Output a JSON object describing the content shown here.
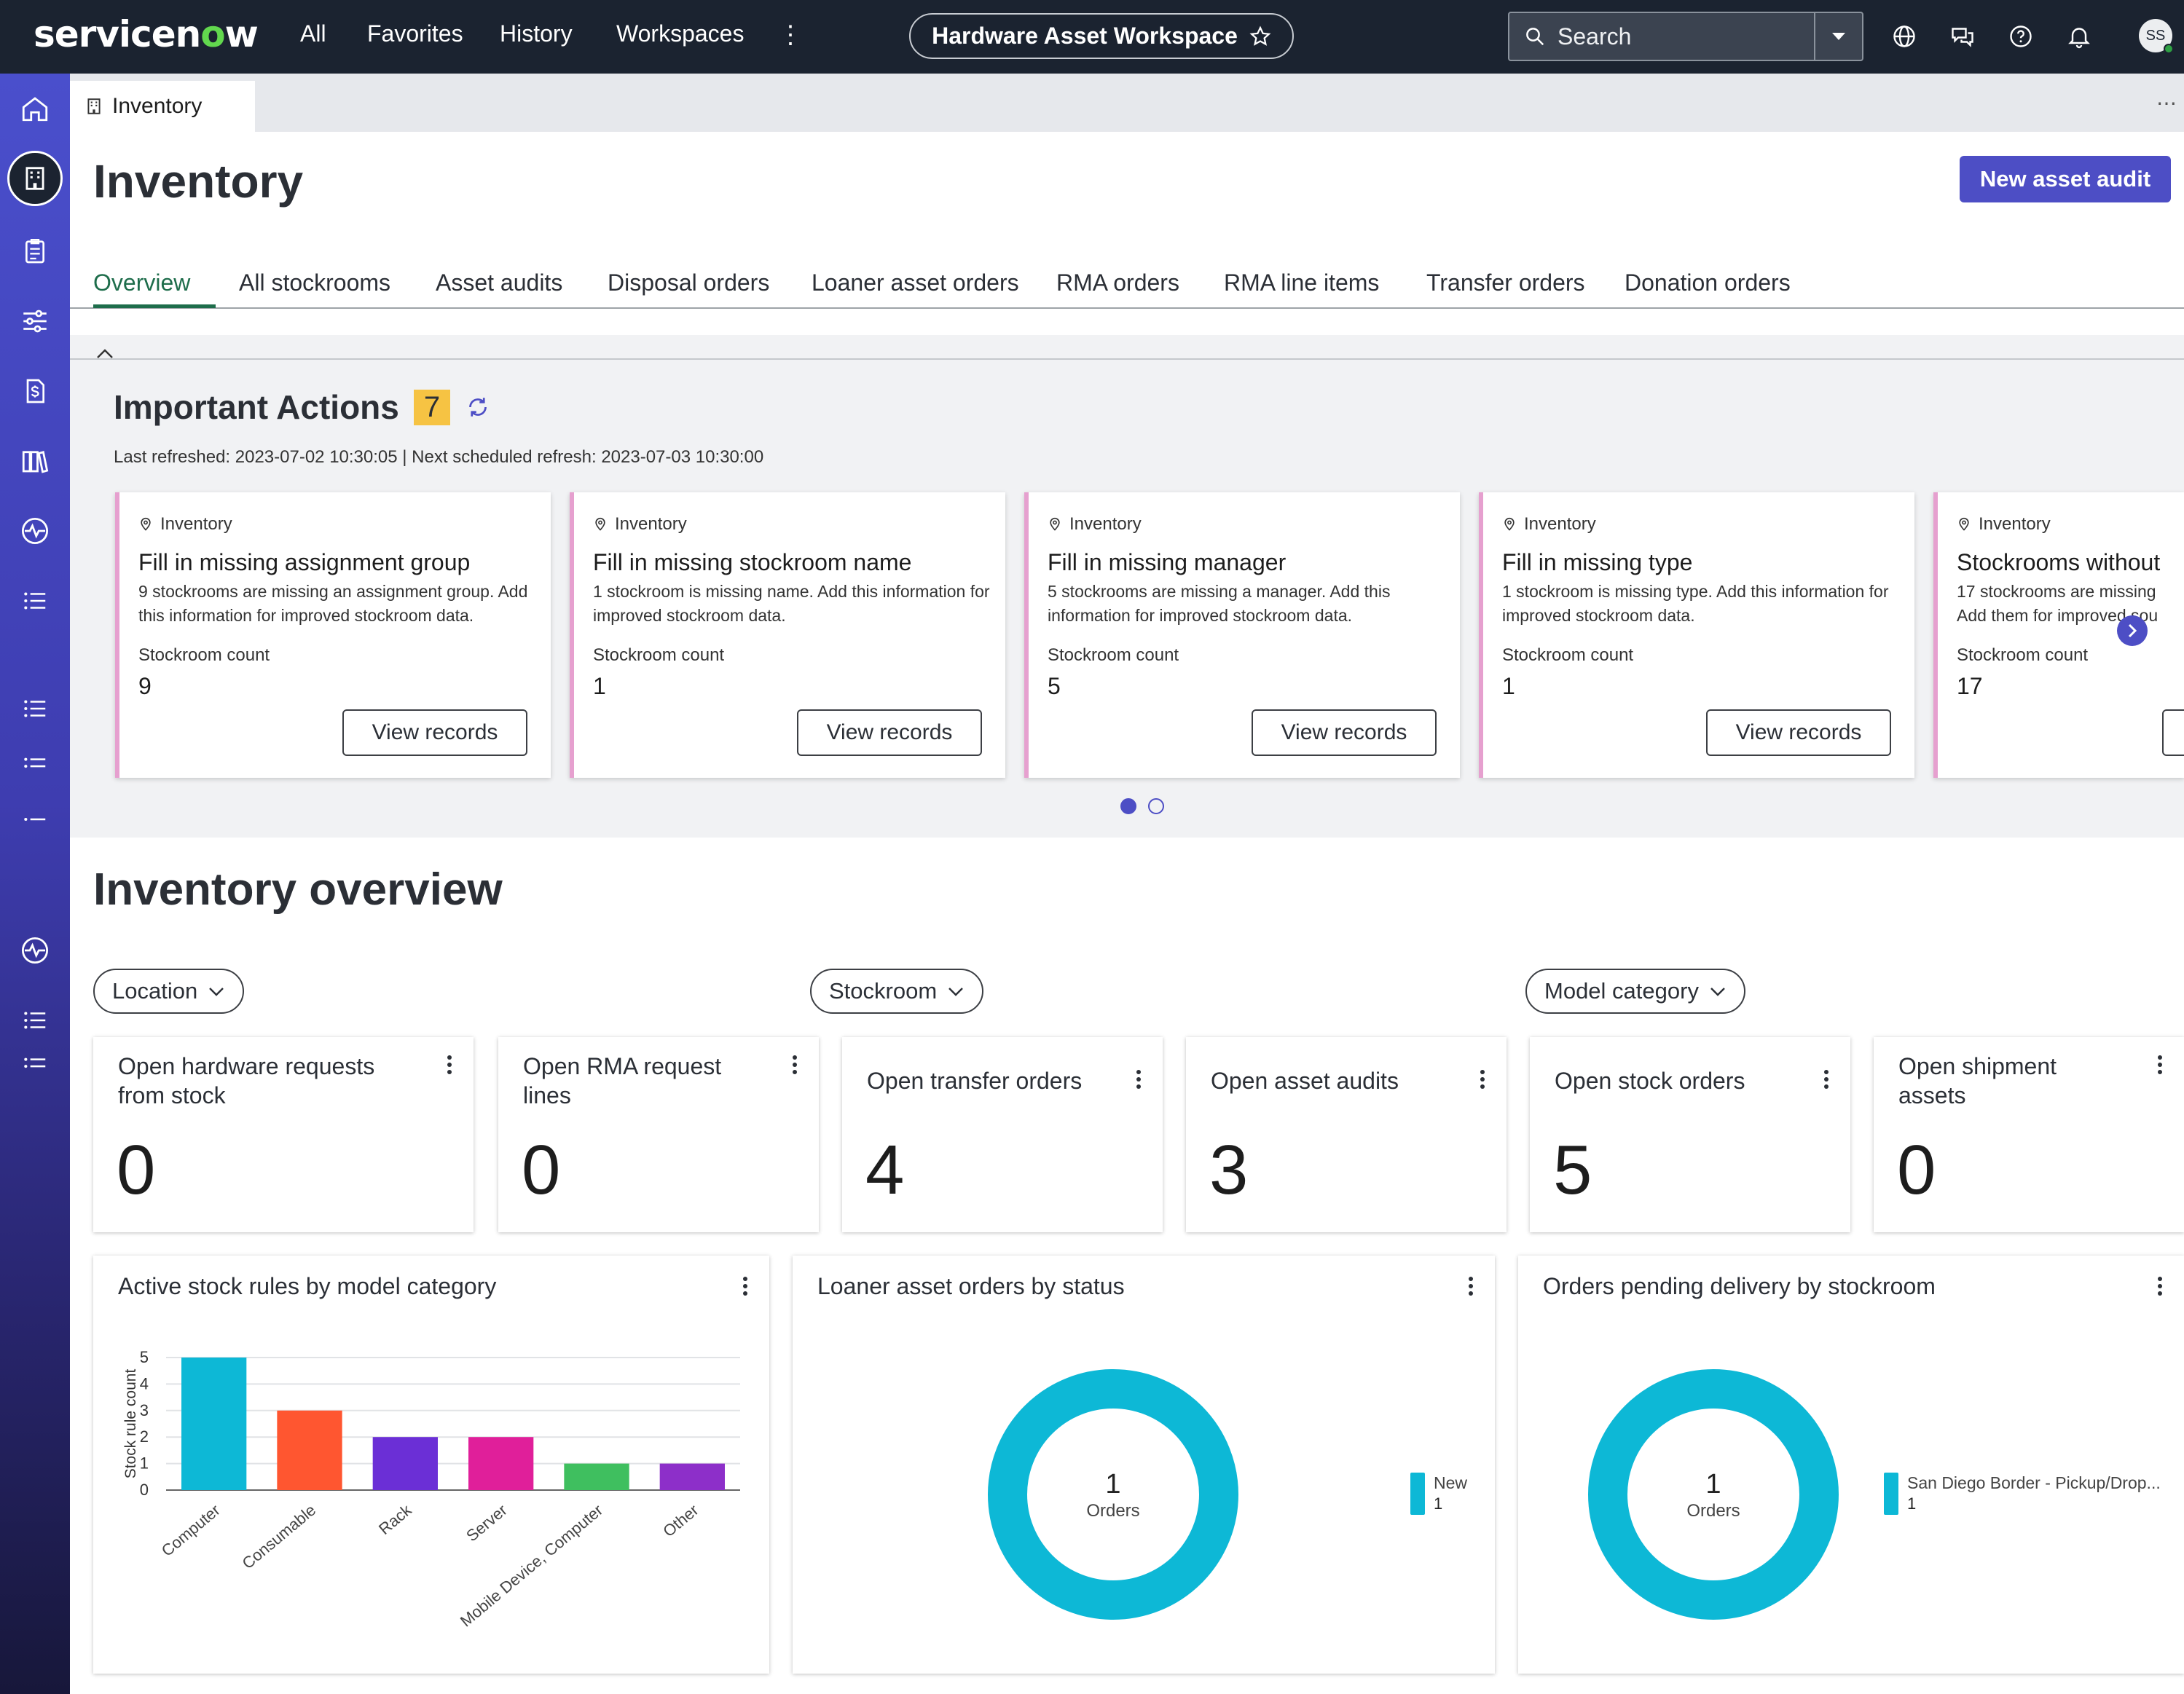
{
  "topnav": {
    "brand": "servicenow",
    "links": [
      "All",
      "Favorites",
      "History",
      "Workspaces"
    ],
    "workspace_title": "Hardware Asset Workspace",
    "search_placeholder": "Search",
    "avatar_initials": "SS"
  },
  "sidebar": {
    "icons": [
      "home-icon",
      "building-icon",
      "clipboard-icon",
      "sliders-icon",
      "invoice-dollar-icon",
      "books-icon",
      "activity-icon",
      "list-icon",
      "list-icon",
      "list-icon",
      "list-icon",
      "activity-icon",
      "list-icon",
      "list-icon"
    ]
  },
  "tabstrip": {
    "active_tab": "Inventory"
  },
  "page": {
    "title": "Inventory",
    "primary_action": "New asset audit",
    "tabs": [
      "Overview",
      "All stockrooms",
      "Asset audits",
      "Disposal orders",
      "Loaner asset orders",
      "RMA orders",
      "RMA line items",
      "Transfer orders",
      "Donation orders"
    ],
    "active_tab": "Overview"
  },
  "important_actions": {
    "title": "Important Actions",
    "count": "7",
    "refresh_text": "Last refreshed: 2023-07-02 10:30:05 | Next scheduled refresh: 2023-07-03 10:30:00",
    "cards": [
      {
        "category": "Inventory",
        "title": "Fill in missing assignment group",
        "description": "9 stockrooms are missing an assignment group. Add this information for improved stockroom data.",
        "count_label": "Stockroom count",
        "count": "9",
        "button": "View records"
      },
      {
        "category": "Inventory",
        "title": "Fill in missing stockroom name",
        "description": "1 stockroom is missing name. Add this information for improved stockroom data.",
        "count_label": "Stockroom count",
        "count": "1",
        "button": "View records"
      },
      {
        "category": "Inventory",
        "title": "Fill in missing manager",
        "description": "5 stockrooms are missing a manager. Add this information for improved stockroom data.",
        "count_label": "Stockroom count",
        "count": "5",
        "button": "View records"
      },
      {
        "category": "Inventory",
        "title": "Fill in missing type",
        "description": "1 stockroom is missing type. Add this information for improved stockroom data.",
        "count_label": "Stockroom count",
        "count": "1",
        "button": "View records"
      },
      {
        "category": "Inventory",
        "title": "Stockrooms without",
        "description": "17 stockrooms are missing Add them for improved sou",
        "count_label": "Stockroom count",
        "count": "17",
        "button": ""
      }
    ],
    "page_dots": [
      "1",
      "2"
    ]
  },
  "overview": {
    "title": "Inventory overview",
    "filters": [
      "Location",
      "Stockroom",
      "Model category"
    ],
    "kpis": [
      {
        "title": "Open hardware requests from stock",
        "value": "0"
      },
      {
        "title": "Open RMA request lines",
        "value": "0"
      },
      {
        "title": "Open transfer orders",
        "value": "4"
      },
      {
        "title": "Open asset audits",
        "value": "3"
      },
      {
        "title": "Open stock orders",
        "value": "5"
      },
      {
        "title": "Open shipment assets",
        "value": "0"
      }
    ]
  },
  "chart_data": [
    {
      "type": "bar",
      "title": "Active stock rules by model category",
      "xlabel": "",
      "ylabel": "Stock rule count",
      "categories": [
        "Computer",
        "Consumable",
        "Rack",
        "Server",
        "Mobile Device, Computer",
        "Other"
      ],
      "values": [
        5,
        3,
        2,
        2,
        1,
        1
      ],
      "colors": [
        "#0db8d6",
        "#ff5630",
        "#6b2fd6",
        "#e01f9a",
        "#3fbf5f",
        "#8d2fc9"
      ],
      "ylim": [
        0,
        5
      ],
      "yticks": [
        "0",
        "1",
        "2",
        "3",
        "4",
        "5"
      ],
      "grid": true
    },
    {
      "type": "pie",
      "title": "Loaner asset orders by status",
      "center_value": "1",
      "center_label": "Orders",
      "slices": [
        {
          "label": "New",
          "value": 1,
          "color": "#0db8d6"
        }
      ],
      "legend": "right"
    },
    {
      "type": "pie",
      "title": "Orders pending delivery by stockroom",
      "center_value": "1",
      "center_label": "Orders",
      "slices": [
        {
          "label": "San Diego Border - Pickup/Drop...",
          "value": 1,
          "color": "#0db8d6"
        }
      ],
      "legend": "right"
    }
  ]
}
